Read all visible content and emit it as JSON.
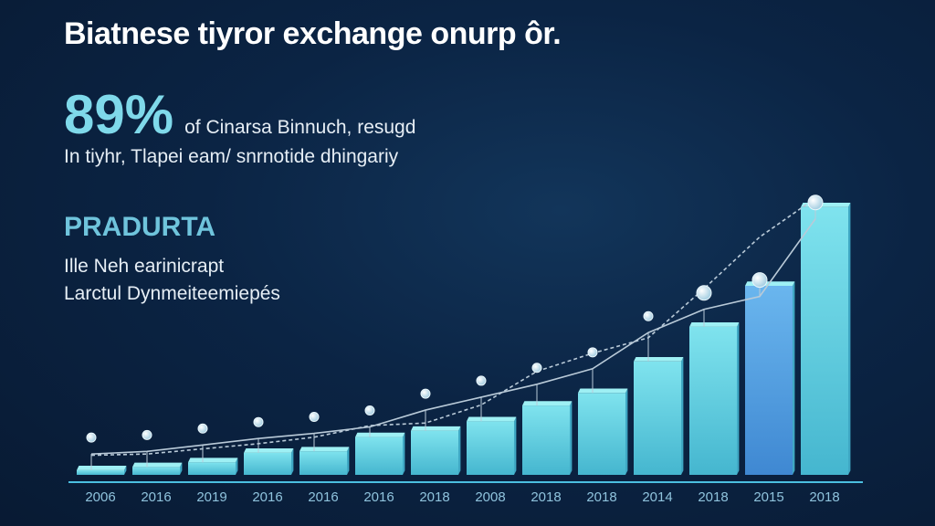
{
  "header": {
    "title": "Biatnese tiyror exchange onurp ôr."
  },
  "stat": {
    "value": "89%",
    "caption": "of Cinarsa Binnuch, resugd",
    "subcaption": "In tiyhr, Tlapei eam/ snrnotide dhingariy"
  },
  "section": {
    "title": "PRADURTA",
    "lines": [
      "Ille Neh earinicrapt",
      "Larctul Dynmeiteemiepés"
    ]
  },
  "chart_data": {
    "type": "bar",
    "categories": [
      "2006",
      "2016",
      "2019",
      "2016",
      "2016",
      "2016",
      "2018",
      "2008",
      "2018",
      "2018",
      "2014",
      "2018",
      "2015",
      "2018"
    ],
    "values": [
      1.5,
      2.5,
      4,
      7,
      7.5,
      12,
      14,
      17,
      22,
      26,
      36,
      47,
      60,
      85
    ],
    "trend_line": [
      1,
      2,
      4.5,
      7,
      9,
      11.5,
      18,
      23,
      28,
      34,
      48,
      57,
      62,
      92
    ],
    "secondary_line": [
      0.5,
      1,
      3,
      5,
      7.5,
      12,
      13,
      20,
      33,
      40,
      46,
      65,
      85,
      100
    ],
    "ylim": [
      0,
      100
    ],
    "title": "",
    "xlabel": "",
    "ylabel": "",
    "grid": false,
    "legend": false,
    "colors": {
      "bar_top": "#9ef0f4",
      "bar_front": "#5ccfe0",
      "bar_side": "#3fa8c4",
      "bar_highlight": "#4a9fe4",
      "axis": "#4bbfe0",
      "line": "#b9cad8",
      "marker": "#cfe9f5"
    }
  }
}
